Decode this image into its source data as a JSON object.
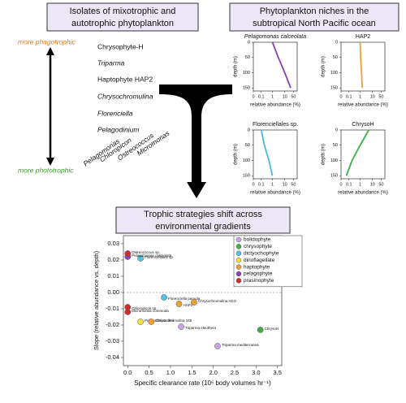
{
  "isolates_panel": {
    "title_lines": [
      "Isolates of mixotrophic and",
      "autotrophic phytoplankton"
    ],
    "top_label": "more phagotrophic",
    "bottom_label": "more phototrophic",
    "isolates": [
      "Chrysophyte-H",
      "Triparma",
      "Haptophyte HAP2",
      "Chrysochromulina",
      "Florenciella",
      "Pelagodinium"
    ],
    "bottom_isolates": [
      "Pelagomonas",
      "Chloropicon",
      "Ostreococcus",
      "Micromonas"
    ]
  },
  "niche_panel": {
    "title_lines": [
      "Phytoplankton niches in the",
      "subtropical North Pacific ocean"
    ]
  },
  "main_panel": {
    "title_lines": [
      "Trophic strategies shift across",
      "environmental gradients"
    ]
  },
  "chart_data": [
    {
      "type": "line",
      "title": "Pelagomonas calceolata",
      "title_style": "italic",
      "xlabel": "relative abundance (%)",
      "ylabel": "depth (m)",
      "log_scale": true,
      "y_inverted": true,
      "y": [
        0,
        50,
        100,
        150
      ],
      "series": [
        {
          "color": "#8e3fb5",
          "values": [
            1,
            3,
            10,
            30
          ]
        }
      ],
      "xlim": [
        0,
        100
      ],
      "xticks": [
        0,
        0.1,
        1,
        10,
        50
      ],
      "ylim": [
        0,
        160
      ],
      "yticks": [
        0,
        50,
        100,
        150
      ]
    },
    {
      "type": "line",
      "title": "HAP2",
      "title_style": "normal",
      "xlabel": "relative abundance (%)",
      "ylabel": "depth (m)",
      "log_scale": true,
      "y_inverted": true,
      "y": [
        0,
        50,
        100,
        150
      ],
      "series": [
        {
          "color": "#f0a030",
          "values": [
            1,
            1.1,
            1.3,
            1.5
          ]
        }
      ],
      "xlim": [
        0,
        100
      ],
      "xticks": [
        0,
        0.1,
        1,
        10,
        50
      ],
      "ylim": [
        0,
        160
      ],
      "yticks": [
        0,
        50,
        100,
        150
      ]
    },
    {
      "type": "line",
      "title": "Florenciellales sp.",
      "title_style": "normal",
      "xlabel": "relative abundance (%)",
      "ylabel": "depth (m)",
      "log_scale": true,
      "y_inverted": true,
      "y": [
        0,
        50,
        100,
        150
      ],
      "series": [
        {
          "color": "#4fb8e0",
          "values": [
            0.1,
            0.2,
            0.5,
            1
          ]
        }
      ],
      "xlim": [
        0,
        100
      ],
      "xticks": [
        0,
        0.1,
        1,
        10,
        50
      ],
      "ylim": [
        0,
        160
      ],
      "yticks": [
        0,
        50,
        100,
        150
      ]
    },
    {
      "type": "line",
      "title": "ChrysoH",
      "title_style": "normal",
      "xlabel": "relative abundance (%)",
      "ylabel": "depth (m)",
      "log_scale": true,
      "y_inverted": true,
      "y": [
        0,
        50,
        100,
        150
      ],
      "series": [
        {
          "color": "#3cb043",
          "values": [
            5,
            1,
            0.2,
            0.05
          ]
        }
      ],
      "xlim": [
        0,
        100
      ],
      "xticks": [
        0,
        0.1,
        1,
        10,
        50
      ],
      "ylim": [
        0,
        160
      ],
      "yticks": [
        0,
        50,
        100,
        150
      ]
    },
    {
      "type": "scatter",
      "xlabel": "Specific clearance rate (10⁶ body volumes hr⁻¹)",
      "ylabel": "Slope (relative abundance vs. depth)",
      "xlim": [
        -0.1,
        3.6
      ],
      "ylim": [
        -0.045,
        0.035
      ],
      "xticks": [
        {
          "value": 0,
          "label": "0.0"
        },
        0.5,
        {
          "value": 1,
          "label": "1.0"
        },
        1.5,
        {
          "value": 2,
          "label": "2.0"
        },
        2.5,
        {
          "value": 3,
          "label": "3.0"
        },
        3.5
      ],
      "yticks": [
        -0.04,
        -0.03,
        -0.02,
        -0.01,
        {
          "value": 0,
          "label": "0.00"
        },
        0.01,
        0.02,
        0.03
      ],
      "reference_line": 0,
      "legend": "top-right",
      "series": [
        {
          "name": "bolidophyte",
          "color": "#c9a3e3",
          "x": [
            2.1,
            1.25
          ],
          "values": [
            -0.033,
            -0.021
          ],
          "labels": [
            "Triparma mediterranea",
            "Triparma eleuthera"
          ]
        },
        {
          "name": "chrysophyte",
          "color": "#3cb043",
          "x": [
            3.1
          ],
          "values": [
            -0.023
          ],
          "labels": [
            "ChrysoH"
          ]
        },
        {
          "name": "dictyochophyte",
          "color": "#4fc3e8",
          "x": [
            0.3,
            0.85
          ],
          "values": [
            0.021,
            -0.003
          ],
          "labels": [
            "Florenciellales sp.",
            "Florenciella parvula"
          ]
        },
        {
          "name": "dinoflagellate",
          "color": "#f2e23c",
          "x": [
            0.3
          ],
          "values": [
            -0.018
          ],
          "labels": [
            "Pelagodinium beii"
          ]
        },
        {
          "name": "haptophyte",
          "color": "#f0a030",
          "x": [
            1.55,
            1.2,
            0.55
          ],
          "values": [
            -0.006,
            -0.007,
            -0.018
          ],
          "labels": [
            "Chrysochromulina ACO",
            "HAP2",
            "Chrysochromulina 165"
          ]
        },
        {
          "name": "pelagophyte",
          "color": "#8e3fb5",
          "x": [
            0
          ],
          "values": [
            0.022
          ],
          "labels": [
            "Pelagomonas calceolata"
          ]
        },
        {
          "name": "prasinophyte",
          "color": "#d62828",
          "x": [
            0,
            0,
            0
          ],
          "values": [
            0.024,
            -0.009,
            -0.012
          ],
          "labels": [
            "Ostreococcus sp.",
            "Chloropicon sp.",
            "Micromonas commoda"
          ]
        }
      ]
    }
  ]
}
